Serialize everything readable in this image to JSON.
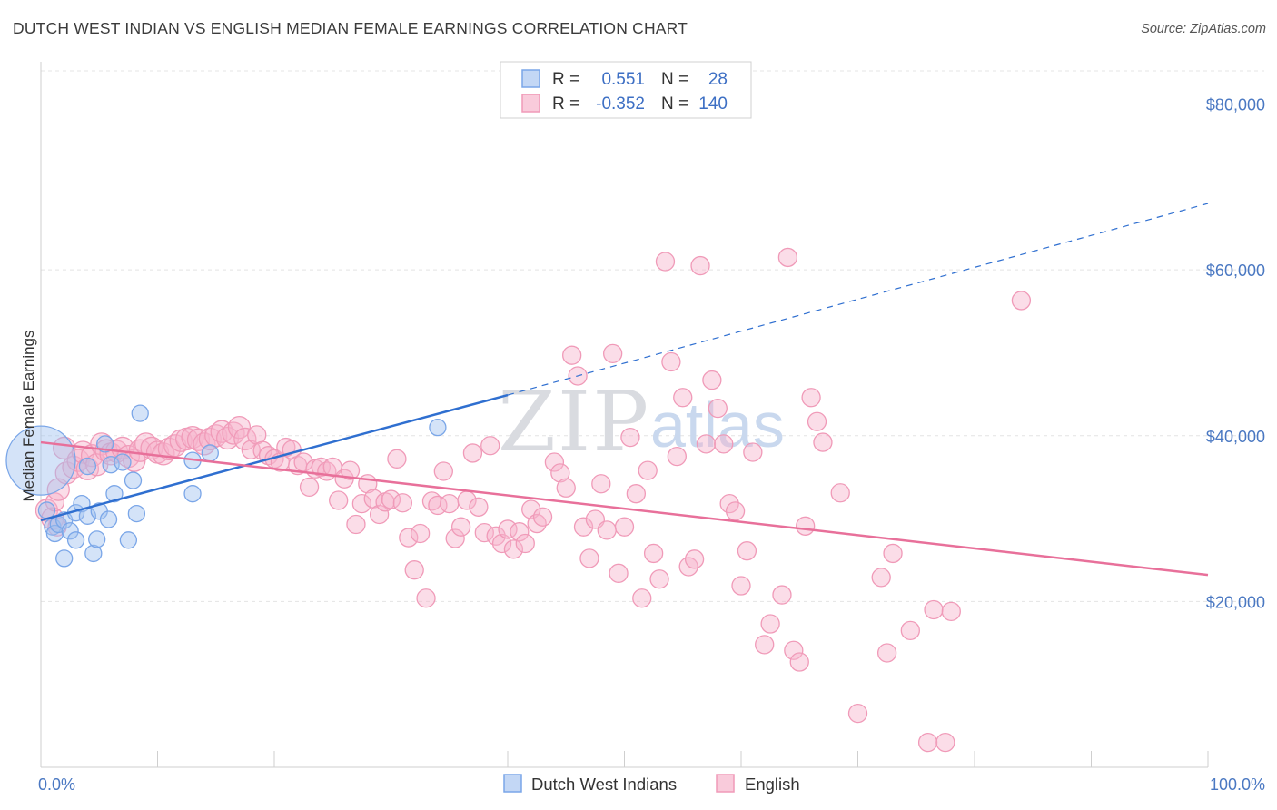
{
  "header": {
    "title": "DUTCH WEST INDIAN VS ENGLISH MEDIAN FEMALE EARNINGS CORRELATION CHART",
    "source": "Source: ZipAtlas.com"
  },
  "watermark": {
    "zip": "ZIP",
    "atlas": "atlas"
  },
  "legend": {
    "r_label": "R =",
    "n_label": "N =",
    "entries": [
      {
        "r": "0.551",
        "n": "28",
        "color": "#7aa6e8"
      },
      {
        "r": "-0.352",
        "n": "140",
        "color": "#f09ab8"
      }
    ]
  },
  "colors": {
    "blue": "#7aa6e8",
    "blue_line": "#2f6fd0",
    "pink": "#f09ab8",
    "pink_line": "#e8709a"
  },
  "chart_data": {
    "type": "scatter",
    "title": "DUTCH WEST INDIAN VS ENGLISH MEDIAN FEMALE EARNINGS CORRELATION CHART",
    "xlabel": "",
    "ylabel": "Median Female Earnings",
    "xlim": [
      0,
      100
    ],
    "ylim": [
      0,
      84000
    ],
    "x_tick_labels": [
      "0.0%",
      "100.0%"
    ],
    "y_ticks": [
      {
        "value": 20000,
        "label": "$20,000"
      },
      {
        "value": 40000,
        "label": "$40,000"
      },
      {
        "value": 60000,
        "label": "$60,000"
      },
      {
        "value": 80000,
        "label": "$80,000"
      }
    ],
    "grid": true,
    "legend_position": "top-center",
    "series": [
      {
        "name": "Dutch West Indians",
        "color": "#7aa6e8",
        "trend": {
          "x0": 0,
          "y0": 29800,
          "x1": 40,
          "y1": 44900,
          "dashed_to_x": 100,
          "dashed_to_y": 68000
        },
        "points": [
          [
            0,
            37000,
            38
          ],
          [
            0.5,
            31000,
            9
          ],
          [
            1,
            29000,
            9
          ],
          [
            1.2,
            28200,
            9
          ],
          [
            1.5,
            29300,
            9
          ],
          [
            2,
            29800,
            9
          ],
          [
            2,
            25200,
            9
          ],
          [
            2.5,
            28500,
            9
          ],
          [
            3,
            27400,
            9
          ],
          [
            3,
            30700,
            9
          ],
          [
            3.5,
            31800,
            9
          ],
          [
            4,
            36300,
            9
          ],
          [
            4,
            30300,
            9
          ],
          [
            4.5,
            25800,
            9
          ],
          [
            4.8,
            27500,
            9
          ],
          [
            5,
            30900,
            9
          ],
          [
            5.5,
            39000,
            9
          ],
          [
            5.8,
            29900,
            9
          ],
          [
            6,
            36500,
            9
          ],
          [
            6.3,
            33000,
            9
          ],
          [
            7,
            36800,
            9
          ],
          [
            7.5,
            27400,
            9
          ],
          [
            7.9,
            34600,
            9
          ],
          [
            8.2,
            30600,
            9
          ],
          [
            8.5,
            42700,
            9
          ],
          [
            13,
            37000,
            9
          ],
          [
            13,
            33000,
            9
          ],
          [
            14.5,
            37900,
            9
          ],
          [
            34,
            41000,
            9
          ]
        ]
      },
      {
        "name": "English",
        "color": "#f09ab8",
        "trend": {
          "x0": 0,
          "y0": 39200,
          "x1": 100,
          "y1": 23200
        },
        "points": [
          [
            0.5,
            31000,
            12
          ],
          [
            1,
            30000,
            12
          ],
          [
            1.2,
            32000,
            10
          ],
          [
            1.4,
            29000,
            10
          ],
          [
            1.5,
            33500,
            12
          ],
          [
            2,
            38500,
            12
          ],
          [
            2.2,
            35500,
            12
          ],
          [
            2.8,
            36200,
            12
          ],
          [
            3.2,
            37000,
            12
          ],
          [
            3.6,
            38000,
            12
          ],
          [
            4,
            36000,
            12
          ],
          [
            4.4,
            37600,
            12
          ],
          [
            4.8,
            36500,
            12
          ],
          [
            5.2,
            39000,
            12
          ],
          [
            5.6,
            38200,
            12
          ],
          [
            6,
            37800,
            12
          ],
          [
            6.5,
            38100,
            12
          ],
          [
            7,
            38500,
            12
          ],
          [
            7.5,
            37500,
            12
          ],
          [
            8,
            37000,
            12
          ],
          [
            8.5,
            38200,
            12
          ],
          [
            9,
            39000,
            12
          ],
          [
            9.5,
            38500,
            12
          ],
          [
            10,
            38000,
            12
          ],
          [
            10.5,
            37800,
            12
          ],
          [
            11,
            38400,
            12
          ],
          [
            11.5,
            38800,
            12
          ],
          [
            12,
            39400,
            12
          ],
          [
            12.5,
            39600,
            12
          ],
          [
            13,
            39800,
            12
          ],
          [
            13.5,
            39500,
            12
          ],
          [
            14,
            39000,
            12
          ],
          [
            14.5,
            39600,
            12
          ],
          [
            15,
            40000,
            12
          ],
          [
            15.5,
            40500,
            12
          ],
          [
            16,
            39700,
            12
          ],
          [
            16.5,
            40300,
            12
          ],
          [
            17,
            41000,
            12
          ],
          [
            17.5,
            39600,
            12
          ],
          [
            18,
            38300,
            10
          ],
          [
            18.5,
            40100,
            10
          ],
          [
            19,
            38200,
            10
          ],
          [
            19.5,
            37600,
            10
          ],
          [
            20,
            37200,
            10
          ],
          [
            20.5,
            36800,
            10
          ],
          [
            21,
            38600,
            10
          ],
          [
            21.5,
            38300,
            10
          ],
          [
            22,
            36400,
            10
          ],
          [
            22.5,
            36800,
            10
          ],
          [
            23,
            33800,
            10
          ],
          [
            23.5,
            36000,
            10
          ],
          [
            24,
            36200,
            10
          ],
          [
            24.5,
            35700,
            10
          ],
          [
            25,
            36200,
            10
          ],
          [
            25.5,
            32200,
            10
          ],
          [
            26,
            34800,
            10
          ],
          [
            26.5,
            35800,
            10
          ],
          [
            27,
            29300,
            10
          ],
          [
            27.5,
            31800,
            10
          ],
          [
            28,
            34200,
            10
          ],
          [
            28.5,
            32400,
            10
          ],
          [
            29,
            30500,
            10
          ],
          [
            29.5,
            32000,
            10
          ],
          [
            30,
            32300,
            10
          ],
          [
            30.5,
            37200,
            10
          ],
          [
            31,
            31900,
            10
          ],
          [
            31.5,
            27700,
            10
          ],
          [
            32,
            23800,
            10
          ],
          [
            32.5,
            28200,
            10
          ],
          [
            33,
            20400,
            10
          ],
          [
            33.5,
            32100,
            10
          ],
          [
            34,
            31600,
            10
          ],
          [
            34.5,
            35700,
            10
          ],
          [
            35,
            31800,
            10
          ],
          [
            35.5,
            27600,
            10
          ],
          [
            36,
            29000,
            10
          ],
          [
            36.5,
            32200,
            10
          ],
          [
            37,
            37900,
            10
          ],
          [
            37.5,
            31400,
            10
          ],
          [
            38,
            28300,
            10
          ],
          [
            38.5,
            38800,
            10
          ],
          [
            39,
            27900,
            10
          ],
          [
            39.5,
            27000,
            10
          ],
          [
            40,
            28700,
            10
          ],
          [
            40.5,
            26300,
            10
          ],
          [
            41,
            28400,
            10
          ],
          [
            41.5,
            27000,
            10
          ],
          [
            42,
            31100,
            10
          ],
          [
            42.5,
            29400,
            10
          ],
          [
            43,
            30200,
            10
          ],
          [
            44,
            36800,
            10
          ],
          [
            44.5,
            35500,
            10
          ],
          [
            45,
            33700,
            10
          ],
          [
            45.5,
            49700,
            10
          ],
          [
            46,
            47200,
            10
          ],
          [
            46.5,
            29000,
            10
          ],
          [
            47,
            25200,
            10
          ],
          [
            47.5,
            29900,
            10
          ],
          [
            48,
            34200,
            10
          ],
          [
            48.5,
            28600,
            10
          ],
          [
            49,
            49900,
            10
          ],
          [
            49.5,
            23400,
            10
          ],
          [
            50,
            29000,
            10
          ],
          [
            50.5,
            39800,
            10
          ],
          [
            51,
            33000,
            10
          ],
          [
            51.5,
            20400,
            10
          ],
          [
            52,
            35800,
            10
          ],
          [
            52.5,
            25800,
            10
          ],
          [
            53,
            22700,
            10
          ],
          [
            53.5,
            61000,
            10
          ],
          [
            54,
            48900,
            10
          ],
          [
            54.5,
            37500,
            10
          ],
          [
            55,
            44600,
            10
          ],
          [
            55.5,
            24200,
            10
          ],
          [
            56,
            25100,
            10
          ],
          [
            56.5,
            60500,
            10
          ],
          [
            57,
            39000,
            10
          ],
          [
            57.5,
            46700,
            10
          ],
          [
            58,
            43300,
            10
          ],
          [
            58.5,
            39000,
            10
          ],
          [
            59,
            31800,
            10
          ],
          [
            59.5,
            30900,
            10
          ],
          [
            60,
            21900,
            10
          ],
          [
            60.5,
            26100,
            10
          ],
          [
            61,
            38000,
            10
          ],
          [
            62,
            14800,
            10
          ],
          [
            62.5,
            17300,
            10
          ],
          [
            63.5,
            20800,
            10
          ],
          [
            64,
            61500,
            10
          ],
          [
            64.5,
            14100,
            10
          ],
          [
            65,
            12700,
            10
          ],
          [
            65.5,
            29100,
            10
          ],
          [
            66,
            44600,
            10
          ],
          [
            66.5,
            41700,
            10
          ],
          [
            67,
            39200,
            10
          ],
          [
            68.5,
            33100,
            10
          ],
          [
            70,
            6500,
            10
          ],
          [
            72,
            22900,
            10
          ],
          [
            72.5,
            13800,
            10
          ],
          [
            73,
            25800,
            10
          ],
          [
            74.5,
            16500,
            10
          ],
          [
            76,
            3000,
            10
          ],
          [
            76.5,
            19000,
            10
          ],
          [
            77.5,
            3000,
            10
          ],
          [
            78,
            18800,
            10
          ],
          [
            84,
            56300,
            10
          ]
        ]
      }
    ]
  },
  "bottom_legend": [
    "Dutch West Indians",
    "English"
  ]
}
